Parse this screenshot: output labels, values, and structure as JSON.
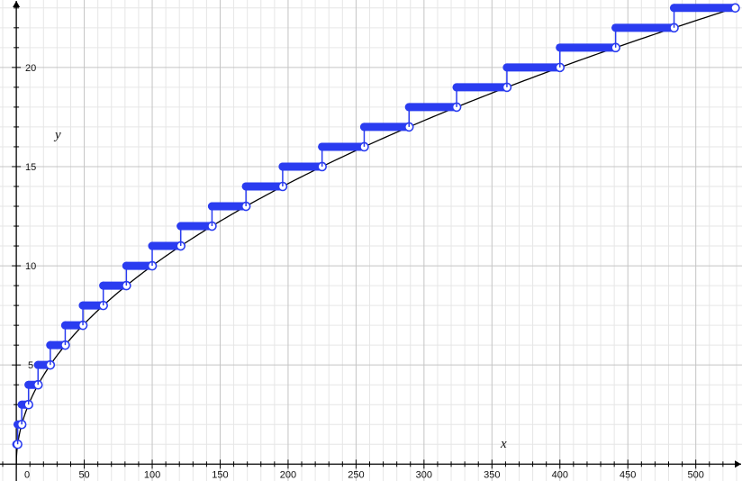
{
  "chart_data": {
    "type": "line",
    "xlabel": "x",
    "ylabel": "y",
    "xlim": [
      -12,
      534
    ],
    "ylim": [
      -0.85,
      23.4
    ],
    "grid": true,
    "x_ticks": [
      0,
      50,
      100,
      150,
      200,
      250,
      300,
      350,
      400,
      450,
      500
    ],
    "y_ticks": [
      5,
      10,
      15,
      20
    ],
    "x_tick_labels": [
      "0",
      "50",
      "100",
      "150",
      "200",
      "250",
      "300",
      "350",
      "400",
      "450",
      "500"
    ],
    "y_tick_labels": [
      "5",
      "10",
      "15",
      "20"
    ],
    "series": [
      {
        "kind": "curve",
        "function": "y = sqrt(x)",
        "color": "#000000",
        "x": [
          0,
          1,
          4,
          9,
          16,
          25,
          36,
          49,
          64,
          81,
          100,
          121,
          144,
          169,
          196,
          225,
          256,
          289,
          324,
          361,
          400,
          441,
          484,
          529
        ],
        "y": [
          0,
          1,
          2,
          3,
          4,
          5,
          6,
          7,
          8,
          9,
          10,
          11,
          12,
          13,
          14,
          15,
          16,
          17,
          18,
          19,
          20,
          21,
          22,
          23
        ]
      },
      {
        "kind": "step",
        "function": "y = ceil(sqrt(x))",
        "color": "#2a3cf0",
        "steps": [
          {
            "x0": 0,
            "x1": 1,
            "y": 1
          },
          {
            "x0": 1,
            "x1": 4,
            "y": 2
          },
          {
            "x0": 4,
            "x1": 9,
            "y": 3
          },
          {
            "x0": 9,
            "x1": 16,
            "y": 4
          },
          {
            "x0": 16,
            "x1": 25,
            "y": 5
          },
          {
            "x0": 25,
            "x1": 36,
            "y": 6
          },
          {
            "x0": 36,
            "x1": 49,
            "y": 7
          },
          {
            "x0": 49,
            "x1": 64,
            "y": 8
          },
          {
            "x0": 64,
            "x1": 81,
            "y": 9
          },
          {
            "x0": 81,
            "x1": 100,
            "y": 10
          },
          {
            "x0": 100,
            "x1": 121,
            "y": 11
          },
          {
            "x0": 121,
            "x1": 144,
            "y": 12
          },
          {
            "x0": 144,
            "x1": 169,
            "y": 13
          },
          {
            "x0": 169,
            "x1": 196,
            "y": 14
          },
          {
            "x0": 196,
            "x1": 225,
            "y": 15
          },
          {
            "x0": 225,
            "x1": 256,
            "y": 16
          },
          {
            "x0": 256,
            "x1": 289,
            "y": 17
          },
          {
            "x0": 289,
            "x1": 324,
            "y": 18
          },
          {
            "x0": 324,
            "x1": 361,
            "y": 19
          },
          {
            "x0": 361,
            "x1": 400,
            "y": 20
          },
          {
            "x0": 400,
            "x1": 441,
            "y": 21
          },
          {
            "x0": 441,
            "x1": 484,
            "y": 22
          },
          {
            "x0": 484,
            "x1": 529,
            "y": 23
          }
        ]
      }
    ]
  }
}
